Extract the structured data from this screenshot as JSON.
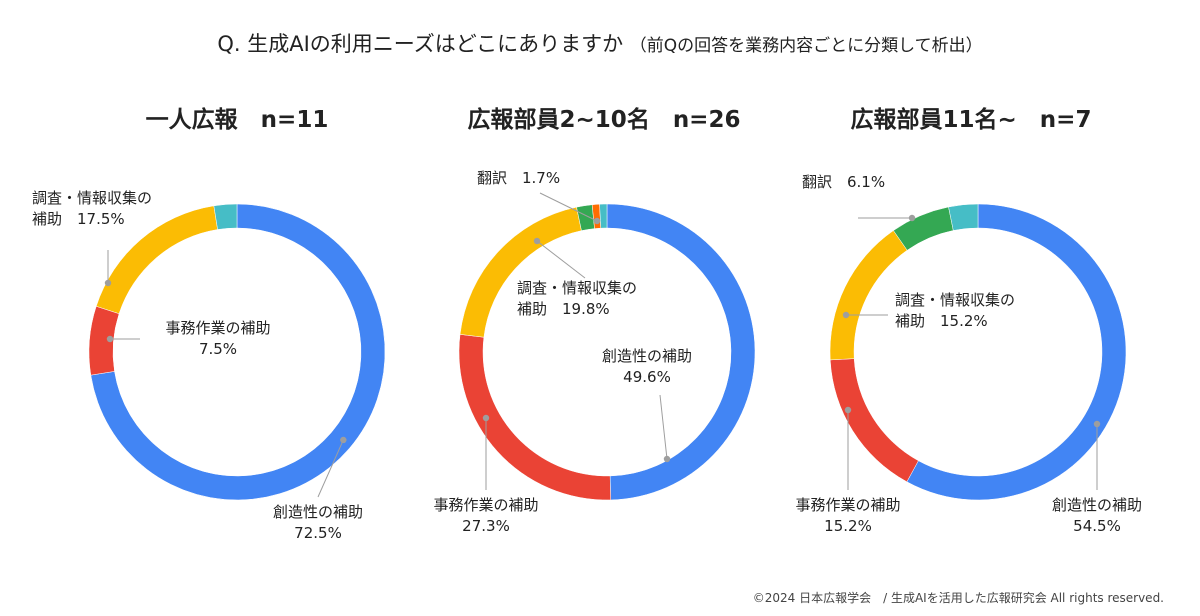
{
  "title": "Q. 生成AIの利用ニーズはどこにありますか",
  "subtitle": "（前Qの回答を業務内容ごとに分類して析出）",
  "copyright": "©2024 日本広報学会　/ 生成AIを活用した広報研究会 All rights reserved.",
  "colors": {
    "creative": "#4285f4",
    "office": "#ea4335",
    "research": "#fbbc04",
    "translation": "#34a853",
    "orange": "#ff6d01",
    "teal": "#46bdc6"
  },
  "chart_data": [
    {
      "type": "pie",
      "title": "一人広報　n=11",
      "slices": [
        {
          "label": "創造性の補助",
          "value": 72.5,
          "color": "#4285f4",
          "display": "72.5%"
        },
        {
          "label": "事務作業の補助",
          "value": 7.5,
          "color": "#ea4335",
          "display": "7.5%"
        },
        {
          "label": "調査・情報収集の補助",
          "value": 17.5,
          "color": "#fbbc04",
          "display": "17.5%"
        },
        {
          "label": "",
          "value": 2.5,
          "color": "#46bdc6",
          "display": ""
        }
      ]
    },
    {
      "type": "pie",
      "title": "広報部員2~10名　n=26",
      "slices": [
        {
          "label": "創造性の補助",
          "value": 49.6,
          "color": "#4285f4",
          "display": "49.6%"
        },
        {
          "label": "事務作業の補助",
          "value": 27.3,
          "color": "#ea4335",
          "display": "27.3%"
        },
        {
          "label": "調査・情報収集の補助",
          "value": 19.8,
          "color": "#fbbc04",
          "display": "19.8%"
        },
        {
          "label": "翻訳",
          "value": 1.7,
          "color": "#34a853",
          "display": "1.7%"
        },
        {
          "label": "",
          "value": 0.8,
          "color": "#ff6d01",
          "display": ""
        },
        {
          "label": "",
          "value": 0.8,
          "color": "#46bdc6",
          "display": ""
        }
      ]
    },
    {
      "type": "pie",
      "title": "広報部員11名~　n=7",
      "slices": [
        {
          "label": "創造性の補助",
          "value": 54.5,
          "color": "#4285f4",
          "display": "54.5%"
        },
        {
          "label": "事務作業の補助",
          "value": 15.2,
          "color": "#ea4335",
          "display": "15.2%"
        },
        {
          "label": "調査・情報収集の補助",
          "value": 15.2,
          "color": "#fbbc04",
          "display": "15.2%"
        },
        {
          "label": "翻訳",
          "value": 6.1,
          "color": "#34a853",
          "display": "6.1%"
        },
        {
          "label": "",
          "value": 3.0,
          "color": "#46bdc6",
          "display": ""
        }
      ]
    }
  ]
}
